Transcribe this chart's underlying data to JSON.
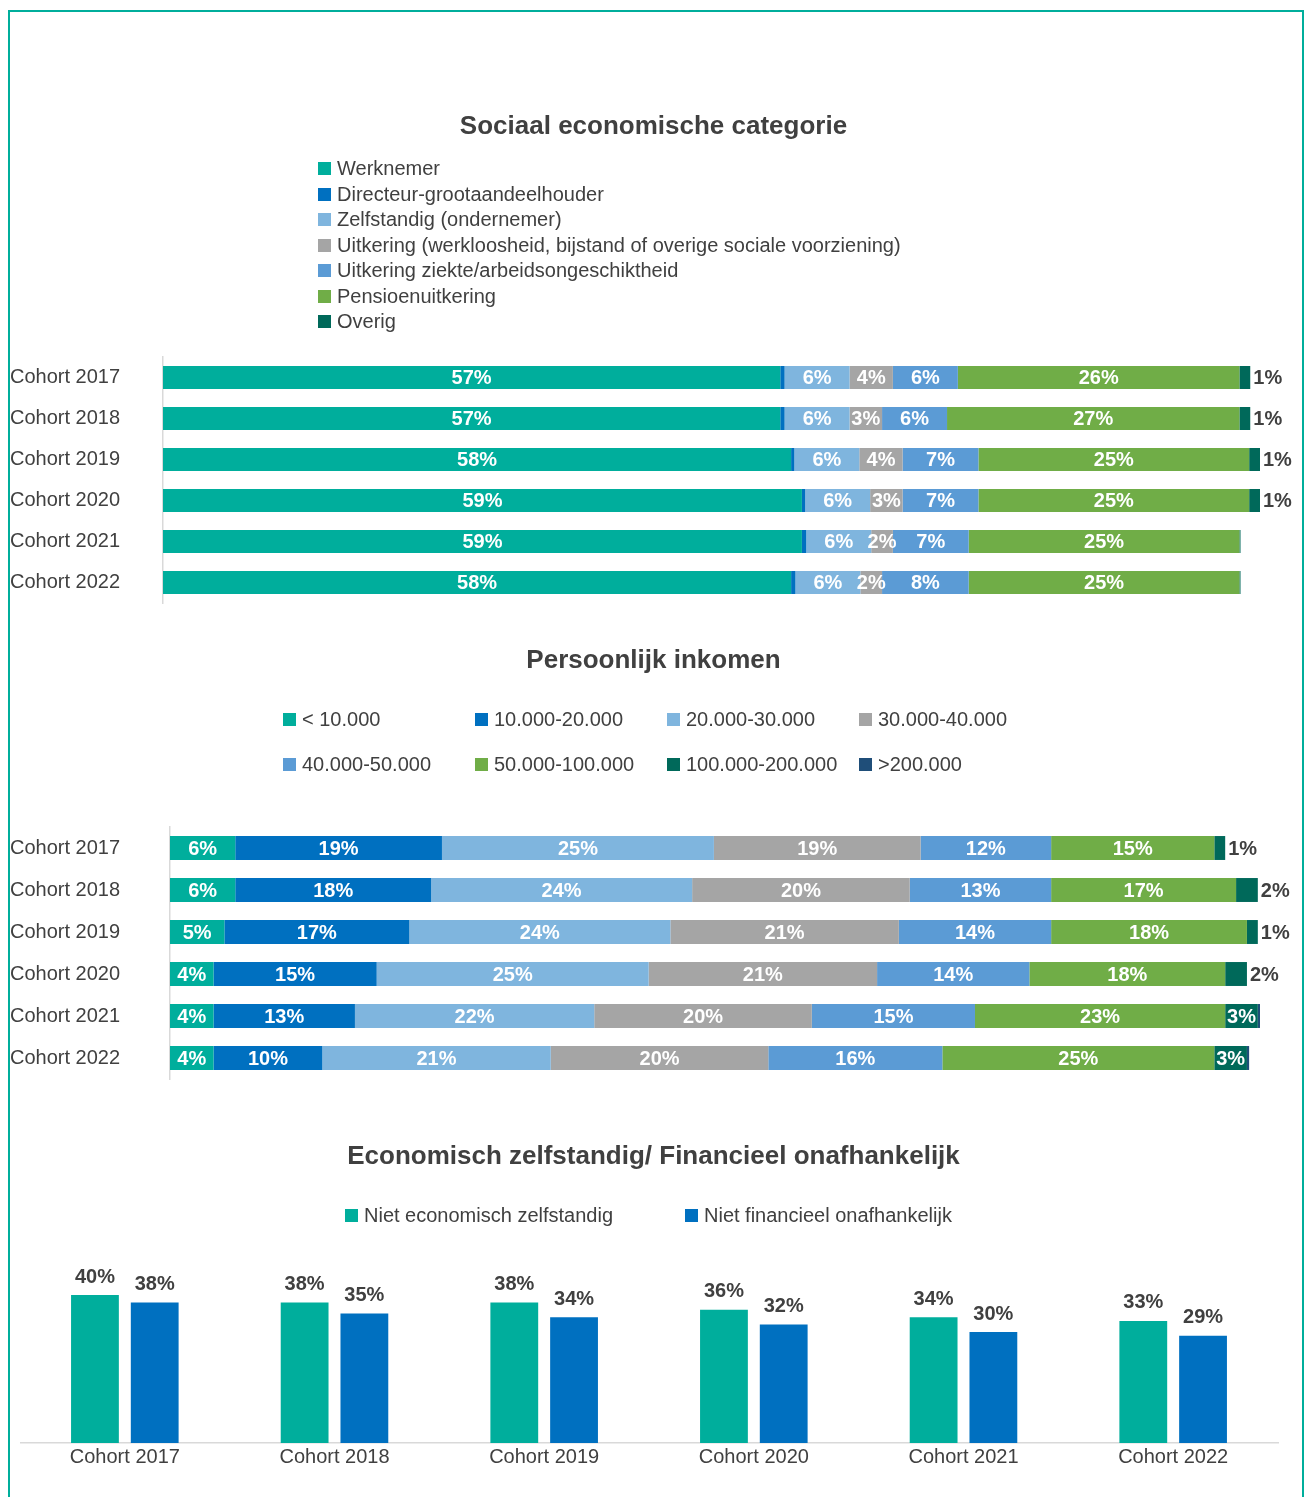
{
  "chart_data": [
    {
      "type": "bar",
      "title": "Sociaal economische categorie",
      "orientation": "horizontal",
      "stacked": true,
      "legend": "top",
      "categories": [
        "Cohort 2017",
        "Cohort 2018",
        "Cohort 2019",
        "Cohort 2020",
        "Cohort 2021",
        "Cohort 2022"
      ],
      "series": [
        {
          "name": "Werknemer",
          "color": "#00ae9c",
          "values": [
            57,
            57,
            58,
            59,
            59,
            58
          ],
          "value_labels": [
            "57%",
            "57%",
            "58%",
            "59%",
            "59%",
            "58%"
          ]
        },
        {
          "name": "Directeur-grootaandeelhouder",
          "color": "#0070c0",
          "values": [
            0.4,
            0.4,
            0.3,
            0.3,
            0.4,
            0.4
          ],
          "value_labels": [
            null,
            null,
            null,
            null,
            null,
            null
          ]
        },
        {
          "name": "Zelfstandig (ondernemer)",
          "color": "#7fb5de",
          "values": [
            6,
            6,
            6,
            6,
            6,
            6
          ],
          "value_labels": [
            "6%",
            "6%",
            "6%",
            "6%",
            "6%",
            "6%"
          ]
        },
        {
          "name": "Uitkering (werkloosheid, bijstand of overige sociale voorziening)",
          "color": "#a5a5a5",
          "values": [
            4,
            3,
            4,
            3,
            2,
            2
          ],
          "value_labels": [
            "4%",
            "3%",
            "4%",
            "3%",
            "2%",
            "2%"
          ]
        },
        {
          "name": "Uitkering ziekte/arbeidsongeschiktheid",
          "color": "#5b9bd5",
          "values": [
            6,
            6,
            7,
            7,
            7,
            8
          ],
          "value_labels": [
            "6%",
            "6%",
            "7%",
            "7%",
            "7%",
            "8%"
          ]
        },
        {
          "name": "Pensioenuitkering",
          "color": "#70ad47",
          "values": [
            26,
            27,
            25,
            25,
            25,
            25
          ],
          "value_labels": [
            "26%",
            "27%",
            "25%",
            "25%",
            "25%",
            "25%"
          ]
        },
        {
          "name": "Overig",
          "color": "#00695a",
          "values": [
            1,
            1,
            1,
            1,
            0.1,
            0.1
          ],
          "value_labels": [
            "1%",
            "1%",
            "1%",
            "1%",
            null,
            null
          ]
        }
      ]
    },
    {
      "type": "bar",
      "title": "Persoonlijk inkomen",
      "orientation": "horizontal",
      "stacked": true,
      "legend": "top",
      "categories": [
        "Cohort 2017",
        "Cohort 2018",
        "Cohort 2019",
        "Cohort 2020",
        "Cohort 2021",
        "Cohort 2022"
      ],
      "series": [
        {
          "name": "< 10.000",
          "color": "#00ae9c",
          "values": [
            6,
            6,
            5,
            4,
            4,
            4
          ],
          "value_labels": [
            "6%",
            "6%",
            "5%",
            "4%",
            "4%",
            "4%"
          ]
        },
        {
          "name": "10.000-20.000",
          "color": "#0070c0",
          "values": [
            19,
            18,
            17,
            15,
            13,
            10
          ],
          "value_labels": [
            "19%",
            "18%",
            "17%",
            "15%",
            "13%",
            "10%"
          ]
        },
        {
          "name": "20.000-30.000",
          "color": "#7fb5de",
          "values": [
            25,
            24,
            24,
            25,
            22,
            21
          ],
          "value_labels": [
            "25%",
            "24%",
            "24%",
            "25%",
            "22%",
            "21%"
          ]
        },
        {
          "name": "30.000-40.000",
          "color": "#a5a5a5",
          "values": [
            19,
            20,
            21,
            21,
            20,
            20
          ],
          "value_labels": [
            "19%",
            "20%",
            "21%",
            "21%",
            "20%",
            "20%"
          ]
        },
        {
          "name": "40.000-50.000",
          "color": "#5b9bd5",
          "values": [
            12,
            13,
            14,
            14,
            15,
            16
          ],
          "value_labels": [
            "12%",
            "13%",
            "14%",
            "14%",
            "15%",
            "16%"
          ]
        },
        {
          "name": "50.000-100.000",
          "color": "#70ad47",
          "values": [
            15,
            17,
            18,
            18,
            23,
            25
          ],
          "value_labels": [
            "15%",
            "17%",
            "18%",
            "18%",
            "23%",
            "25%"
          ]
        },
        {
          "name": "100.000-200.000",
          "color": "#00695a",
          "values": [
            1,
            2,
            1,
            2,
            3,
            3
          ],
          "value_labels": [
            "1%",
            "2%",
            "1%",
            "2%",
            "3%",
            "3%"
          ]
        },
        {
          "name": ">200.000",
          "color": "#1f4e79",
          "values": [
            0,
            0,
            0,
            0,
            0.2,
            0.2
          ],
          "value_labels": [
            null,
            null,
            null,
            null,
            null,
            null
          ]
        }
      ]
    },
    {
      "type": "bar",
      "title": "Economisch zelfstandig/ Financieel onafhankelijk",
      "legend": "top",
      "categories": [
        "Cohort 2017",
        "Cohort 2018",
        "Cohort 2019",
        "Cohort 2020",
        "Cohort 2021",
        "Cohort 2022"
      ],
      "series": [
        {
          "name": "Niet economisch zelfstandig",
          "color": "#00ae9c",
          "values": [
            40,
            38,
            38,
            36,
            34,
            33
          ],
          "value_labels": [
            "40%",
            "38%",
            "38%",
            "36%",
            "34%",
            "33%"
          ]
        },
        {
          "name": "Niet financieel onafhankelijk",
          "color": "#0070c0",
          "values": [
            38,
            35,
            34,
            32,
            30,
            29
          ],
          "value_labels": [
            "38%",
            "35%",
            "34%",
            "32%",
            "30%",
            "29%"
          ]
        }
      ]
    }
  ]
}
